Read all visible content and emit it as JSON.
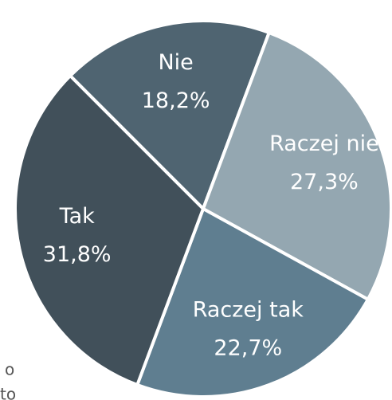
{
  "chart_data": {
    "type": "pie",
    "categories": [
      "Nie",
      "Raczej nie",
      "Raczej tak",
      "Tak"
    ],
    "values": [
      18.2,
      27.3,
      22.7,
      31.8
    ],
    "value_labels": [
      "18,2%",
      "27,3%",
      "22,7%",
      "31,8%"
    ],
    "colors": [
      "#4f6471",
      "#94a7b1",
      "#5f7e90",
      "#41505a"
    ],
    "start_angle": 315,
    "fragments": [
      "o",
      "to"
    ]
  }
}
